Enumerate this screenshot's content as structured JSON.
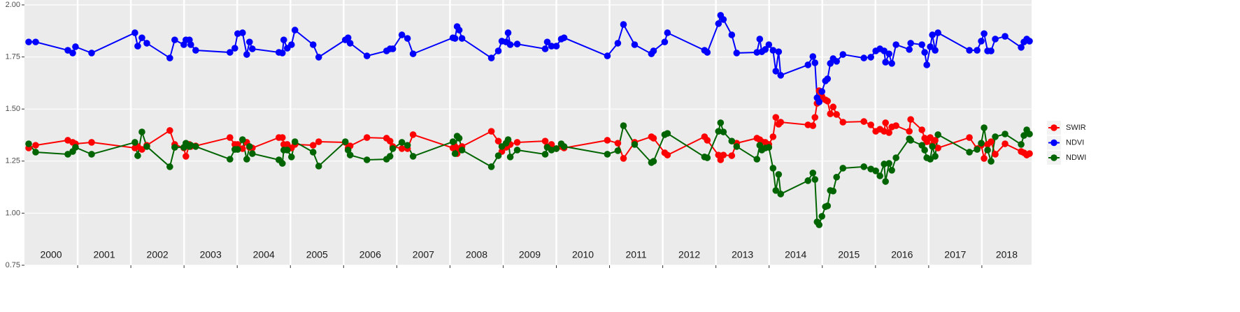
{
  "chart_data": {
    "type": "line",
    "x": [
      2000.079,
      2000.21,
      2000.815,
      2000.907,
      2000.959,
      2001.262,
      2002.076,
      2002.129,
      2002.208,
      2002.3,
      2002.733,
      2002.825,
      2002.996,
      2003.035,
      2003.101,
      2003.127,
      2003.219,
      2003.863,
      2003.955,
      2004.008,
      2004.1,
      2004.179,
      2004.231,
      2004.284,
      2004.783,
      2004.849,
      2004.875,
      2004.941,
      2005.02,
      2005.085,
      2005.427,
      2005.532,
      2006.032,
      2006.084,
      2006.123,
      2006.439,
      2006.807,
      2006.873,
      2006.925,
      2007.096,
      2007.201,
      2007.306,
      2008.055,
      2008.095,
      2008.134,
      2008.173,
      2008.226,
      2008.778,
      2008.909,
      2008.975,
      2009.054,
      2009.093,
      2009.133,
      2009.264,
      2009.79,
      2009.829,
      2009.908,
      2010.0,
      2010.092,
      2010.145,
      2010.959,
      2011.156,
      2011.262,
      2011.472,
      2011.787,
      2011.827,
      2012.037,
      2012.089,
      2012.786,
      2012.838,
      2013.048,
      2013.088,
      2013.141,
      2013.298,
      2013.39,
      2013.771,
      2013.824,
      2013.863,
      2013.929,
      2013.995,
      2014.074,
      2014.126,
      2014.179,
      2014.218,
      2014.731,
      2014.823,
      2014.862,
      2014.902,
      2014.941,
      2014.993,
      2015.059,
      2015.099,
      2015.151,
      2015.204,
      2015.269,
      2015.388,
      2015.782,
      2015.913,
      2016.005,
      2016.084,
      2016.163,
      2016.189,
      2016.255,
      2016.307,
      2016.386,
      2016.636,
      2016.662,
      2016.873,
      2016.925,
      2016.965,
      2017.03,
      2017.07,
      2017.122,
      2017.175,
      2017.766,
      2017.911,
      2017.989,
      2018.042,
      2018.108,
      2018.173,
      2018.252,
      2018.436,
      2018.739,
      2018.791,
      2018.844,
      2018.896
    ],
    "series": [
      {
        "name": "SWIR",
        "color": "#ff0000",
        "values": [
          1.313,
          1.326,
          1.35,
          1.34,
          1.333,
          1.34,
          1.313,
          1.32,
          1.306,
          1.326,
          1.397,
          1.33,
          1.313,
          1.273,
          1.33,
          1.32,
          1.323,
          1.363,
          1.33,
          1.33,
          1.31,
          1.34,
          1.316,
          1.313,
          1.363,
          1.363,
          1.33,
          1.33,
          1.313,
          1.33,
          1.326,
          1.343,
          1.34,
          1.313,
          1.323,
          1.363,
          1.36,
          1.346,
          1.32,
          1.31,
          1.31,
          1.377,
          1.313,
          1.32,
          1.286,
          1.31,
          1.32,
          1.393,
          1.346,
          1.296,
          1.316,
          1.326,
          1.33,
          1.34,
          1.346,
          1.32,
          1.33,
          1.31,
          1.32,
          1.313,
          1.35,
          1.336,
          1.263,
          1.34,
          1.367,
          1.36,
          1.29,
          1.279,
          1.367,
          1.35,
          1.279,
          1.256,
          1.279,
          1.276,
          1.336,
          1.36,
          1.353,
          1.343,
          1.34,
          1.33,
          1.367,
          1.46,
          1.427,
          1.437,
          1.424,
          1.42,
          1.46,
          1.527,
          1.588,
          1.561,
          1.544,
          1.538,
          1.477,
          1.51,
          1.474,
          1.437,
          1.44,
          1.424,
          1.393,
          1.403,
          1.393,
          1.434,
          1.387,
          1.414,
          1.42,
          1.393,
          1.45,
          1.4,
          1.36,
          1.343,
          1.363,
          1.326,
          1.35,
          1.313,
          1.363,
          1.31,
          1.326,
          1.263,
          1.33,
          1.343,
          1.283,
          1.333,
          1.296,
          1.29,
          1.279,
          1.286
        ]
      },
      {
        "name": "NDVI",
        "color": "#0000ff",
        "values": [
          1.822,
          1.822,
          1.782,
          1.769,
          1.799,
          1.769,
          1.866,
          1.802,
          1.842,
          1.816,
          1.745,
          1.832,
          1.809,
          1.832,
          1.832,
          1.809,
          1.782,
          1.772,
          1.792,
          1.862,
          1.866,
          1.762,
          1.822,
          1.789,
          1.772,
          1.769,
          1.832,
          1.792,
          1.809,
          1.879,
          1.809,
          1.749,
          1.832,
          1.842,
          1.816,
          1.755,
          1.779,
          1.789,
          1.789,
          1.856,
          1.839,
          1.765,
          1.842,
          1.839,
          1.896,
          1.879,
          1.839,
          1.745,
          1.779,
          1.826,
          1.822,
          1.866,
          1.809,
          1.812,
          1.789,
          1.822,
          1.802,
          1.802,
          1.836,
          1.842,
          1.755,
          1.816,
          1.906,
          1.809,
          1.765,
          1.779,
          1.822,
          1.866,
          1.782,
          1.772,
          1.91,
          1.95,
          1.93,
          1.856,
          1.769,
          1.772,
          1.836,
          1.775,
          1.786,
          1.809,
          1.782,
          1.682,
          1.775,
          1.662,
          1.712,
          1.752,
          1.722,
          1.554,
          1.534,
          1.584,
          1.635,
          1.645,
          1.719,
          1.742,
          1.729,
          1.762,
          1.745,
          1.749,
          1.779,
          1.789,
          1.779,
          1.725,
          1.765,
          1.719,
          1.809,
          1.786,
          1.816,
          1.809,
          1.772,
          1.712,
          1.799,
          1.856,
          1.782,
          1.866,
          1.782,
          1.782,
          1.826,
          1.862,
          1.779,
          1.779,
          1.836,
          1.849,
          1.796,
          1.822,
          1.836,
          1.826
        ]
      },
      {
        "name": "NDWI",
        "color": "#006400",
        "values": [
          1.333,
          1.293,
          1.283,
          1.296,
          1.316,
          1.283,
          1.34,
          1.276,
          1.39,
          1.32,
          1.223,
          1.316,
          1.316,
          1.336,
          1.32,
          1.326,
          1.32,
          1.259,
          1.306,
          1.306,
          1.353,
          1.259,
          1.32,
          1.286,
          1.256,
          1.239,
          1.303,
          1.303,
          1.27,
          1.343,
          1.293,
          1.226,
          1.343,
          1.303,
          1.279,
          1.256,
          1.259,
          1.273,
          1.31,
          1.34,
          1.326,
          1.273,
          1.343,
          1.286,
          1.37,
          1.36,
          1.303,
          1.223,
          1.276,
          1.32,
          1.336,
          1.353,
          1.27,
          1.303,
          1.283,
          1.316,
          1.303,
          1.31,
          1.333,
          1.32,
          1.283,
          1.3,
          1.42,
          1.33,
          1.243,
          1.249,
          1.377,
          1.383,
          1.27,
          1.266,
          1.393,
          1.434,
          1.39,
          1.346,
          1.32,
          1.259,
          1.326,
          1.303,
          1.313,
          1.316,
          1.216,
          1.109,
          1.186,
          1.092,
          1.156,
          1.193,
          1.162,
          0.958,
          0.944,
          0.985,
          1.031,
          1.035,
          1.109,
          1.106,
          1.173,
          1.216,
          1.223,
          1.212,
          1.203,
          1.179,
          1.236,
          1.152,
          1.239,
          1.206,
          1.266,
          1.357,
          1.35,
          1.326,
          1.303,
          1.266,
          1.259,
          1.32,
          1.273,
          1.377,
          1.293,
          1.306,
          1.336,
          1.41,
          1.303,
          1.249,
          1.367,
          1.38,
          1.33,
          1.373,
          1.4,
          1.38
        ]
      }
    ],
    "xlim": [
      2000,
      2018.935
    ],
    "year_boundaries": [
      2001,
      2002,
      2003,
      2004,
      2005,
      2006,
      2007,
      2008,
      2009,
      2010,
      2011,
      2012,
      2013,
      2014,
      2015,
      2016,
      2017,
      2018
    ],
    "year_labels": [
      "2000",
      "2001",
      "2002",
      "2003",
      "2004",
      "2005",
      "2006",
      "2007",
      "2008",
      "2009",
      "2010",
      "2011",
      "2012",
      "2013",
      "2014",
      "2015",
      "2016",
      "2017",
      "2018"
    ],
    "ylim": [
      0.75,
      2.0
    ],
    "yticks": [
      0.75,
      {
        "value": 1.0,
        "label": "1.00"
      },
      1.25,
      {
        "value": 1.5,
        "label": "1.50"
      },
      1.75,
      {
        "value": 2.0,
        "label": "2.00"
      }
    ],
    "grid": true
  }
}
